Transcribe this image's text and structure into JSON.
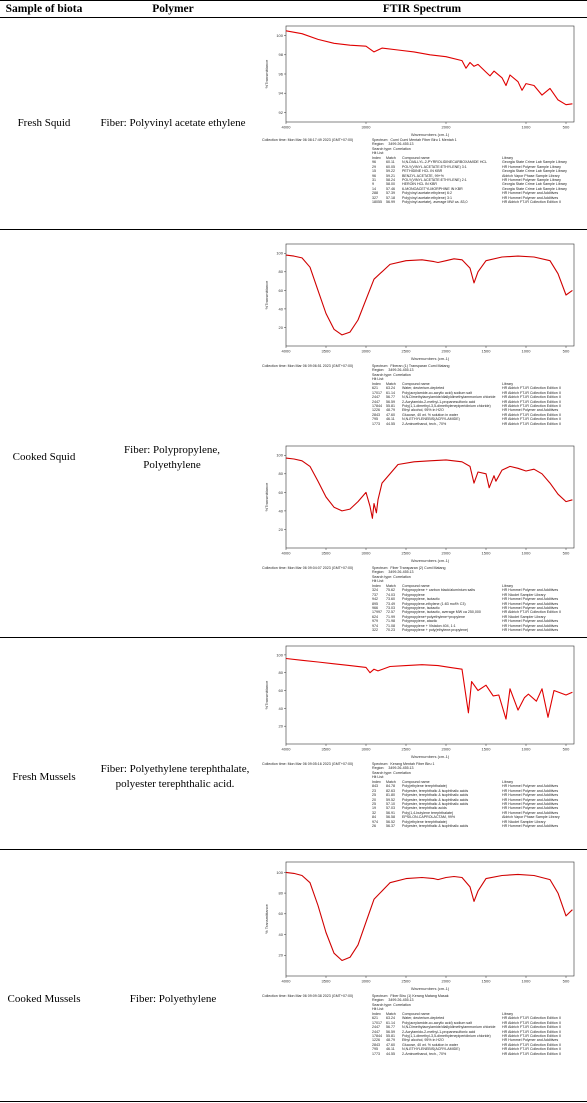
{
  "header": {
    "biota": "Sample of biota",
    "polymer": "Polymer",
    "spectrum": "FTIR Spectrum"
  },
  "rows": [
    {
      "biota": "Fresh Squid",
      "polymer": "Fiber: Polyvinyl acetate ethylene",
      "spectra": [
        {
          "collection": "Collection time: Mon Mar 06 08:17:49 2023 (GMT+07:00)",
          "search_header": "Spectrum:  Cumi Cumi Mentah Fiber Biru 1 Mentah 1\nRegion:    3499.26-455.13\nSearch type: Correlation\nHit List:",
          "hits": [
            [
              "Index",
              "Match",
              "Compound name",
              "Library"
            ],
            [
              "96",
              "60.11",
              "N,N-DIALLYL-2-PYRROLIDINECARBOXAMIDE HCL",
              "Georgia State Crime Lab Sample Library"
            ],
            [
              "29",
              "60.05",
              "POLY(VINYL ACETATE:ETHYLENE) 3:1",
              "HR Hummel Polymer Sample Library"
            ],
            [
              "15",
              "59.22",
              "PETHIDINE HCL IN KBR",
              "Georgia State Crime Lab Sample Library"
            ],
            [
              "96",
              "59.21",
              "BENZYL ACETATE, 99+%",
              "Aldrich Vapor Phase Sample Library"
            ],
            [
              "31",
              "58.24",
              "POLY(VINYL ACETATE:ETHYLENE) 2:1",
              "HR Hummel Polymer Sample Library"
            ],
            [
              "9",
              "58.00",
              "HEROIN HCL IN KBR",
              "Georgia State Crime Lab Sample Library"
            ],
            [
              "14",
              "57.46",
              "6-MONOACETYLMORPHINE IN KBR",
              "Georgia State Crime Lab Sample Library"
            ],
            [
              "288",
              "57.39",
              "Poly(vinyl acetate:ethylene) 6:2",
              "HR Hummel Polymer and Additives"
            ],
            [
              "327",
              "57.18",
              "Poly(vinyl acetate:ethylene) 3:1",
              "HR Hummel Polymer and Additives"
            ],
            [
              "18055",
              "56.99",
              "Poly(vinyl acetate), average MW ca. 83,0",
              "HR Aldrich FT-IR Collection Edition II"
            ]
          ]
        }
      ]
    },
    {
      "biota": "Cooked Squid",
      "polymer": "Fiber: Polypropylene, Polyethylene",
      "spectra": [
        {
          "collection": "Collection time: Mon Mar 06 09:06:51 2023 (GMT+07:00)",
          "search_header": "Spectrum:  Fiberan (1) Transparan Cumi Matang\nRegion:    3499.26-455.13\nSearch type: Correlation\nHit List:",
          "hits": [
            [
              "Index",
              "Match",
              "Compound name",
              "Library"
            ],
            [
              "621",
              "63.24",
              "Water, deuterium-depleted",
              "HR Aldrich FT-IR Collection Edition II"
            ],
            [
              "17017",
              "61.14",
              "Poly(acrylamide-co-acrylic acid) sodium salt",
              "HR Aldrich FT-IR Collection Edition II"
            ],
            [
              "2447",
              "56.77",
              "N,N-Dimethylacrylamide/diallyldimethylammonium chloride",
              "HR Aldrich FT-IR Collection Edition II"
            ],
            [
              "2447",
              "56.59",
              "2-Acrylamido-2-methyl-1-propanesulfonic acid",
              "HR Aldrich FT-IR Collection Edition II"
            ],
            [
              "17844",
              "55.81",
              "Poly(1,1-dimethyl-3,5-dimethylenepiperidinium chloride)",
              "HR Aldrich FT-IR Collection Edition II"
            ],
            [
              "1226",
              "48.79",
              "Ethyl alcohol, 95% in H2O",
              "HR Hummel Polymer and Additives"
            ],
            [
              "2843",
              "47.60",
              "Glucose, 40 wt. % solution in water",
              "HR Aldrich FT-IR Collection Edition II"
            ],
            [
              "795",
              "46.11",
              "N,N-ETHYLENEBIS(ACRYLAMIDE)",
              "HR Aldrich FT-IR Collection Edition II"
            ],
            [
              "1773",
              "44.55",
              "2-Aminoethanol, tech., 70%",
              "HR Aldrich FT-IR Collection Edition II"
            ]
          ]
        },
        {
          "collection": "Collection time: Mon Mar 06 09:04:07 2023 (GMT+07:00)",
          "search_header": "Spectrum:  Fiber Transparan (2) Cumi Matang\nRegion:    3499.26-455.13\nSearch type: Correlation\nHit List:",
          "hits": [
            [
              "Index",
              "Match",
              "Compound name",
              "Library"
            ],
            [
              "324",
              "75.62",
              "Polypropylene + carbon black/aluminium salts",
              "HR Hummel Polymer and Additives"
            ],
            [
              "737",
              "74.03",
              "Polypropylene",
              "HR Nicolet Sampler Library"
            ],
            [
              "942",
              "73.60",
              "Polypropylene, isotactic",
              "HR Hummel Polymer and Additives"
            ],
            [
              "895",
              "73.49",
              "Polypropylene-ethylene (1:83 mol% C3)",
              "HR Hummel Polymer and Additives"
            ],
            [
              "966",
              "73.03",
              "Polypropylene, isotactic",
              "HR Hummel Polymer and Additives"
            ],
            [
              "17997",
              "72.57",
              "Polypropylene, isotactic, average MW ca 250,000",
              "HR Aldrich FT-IR Collection Edition II"
            ],
            [
              "624",
              "71.99",
              "Polypropylene+polyethylene+propylene",
              "HR Nicolet Sampler Library"
            ],
            [
              "979",
              "71.98",
              "Polypropylene, atactic",
              "HR Hummel Polymer and Additives"
            ],
            [
              "974",
              "71.08",
              "Polypropylene + Vistalon 404, 1:1",
              "HR Hummel Polymer and Additives"
            ],
            [
              "322",
              "70.23",
              "Polypropylene + poly(ethylene:propylene)",
              "HR Hummel Polymer and Additives"
            ]
          ]
        }
      ]
    },
    {
      "biota": "Fresh Mussels",
      "polymer": "Fiber: Polyethylene terephthalate, polyester terephthalic acid.",
      "spectra": [
        {
          "collection": "Collection time: Mon Mar 06 09:05:16 2023 (GMT+07:00)",
          "search_header": "Spectrum:  Kerang Mentah Fiber Biru 1\nRegion:    3499.26-455.13\nSearch type: Correlation\nHit List:",
          "hits": [
            [
              "Index",
              "Match",
              "Compound name",
              "Library"
            ],
            [
              "843",
              "84.78",
              "Poly(ethylene terephthalate)",
              "HR Hummel Polymer and Additives"
            ],
            [
              "23",
              "82.63",
              "Polyester, terephthalic & isophthalic acids",
              "HR Hummel Polymer and Additives"
            ],
            [
              "25",
              "81.80",
              "Polyester, terephthalic & isophthalic acids",
              "HR Hummel Polymer and Additives"
            ],
            [
              "20",
              "59.52",
              "Polyester, terephthalic & isophthalic acids",
              "HR Hummel Polymer and Additives"
            ],
            [
              "25",
              "57.10",
              "Polyester, terephthalic & isophthalic acids",
              "HR Hummel Polymer and Additives"
            ],
            [
              "19",
              "57.03",
              "Polyester, terephthalic acids",
              "HR Hummel Polymer and Additives"
            ],
            [
              "32",
              "56.91",
              "Poly(1,4-butylene terephthalate)",
              "HR Hummel Polymer and Additives"
            ],
            [
              "84",
              "56.58",
              "EPSILON-CAPROLACTAM, 99%",
              "Aldrich Vapor Phase Sample Library"
            ],
            [
              "974",
              "56.52",
              "Poly(ethylene terephthalate)",
              "HR Nicolet Sampler Library"
            ],
            [
              "26",
              "56.37",
              "Polyester, terephthalic & isophthalic acids",
              "HR Hummel Polymer and Additives"
            ]
          ]
        }
      ]
    },
    {
      "biota": "Cooked Mussels",
      "polymer": "Fiber: Polyethylene",
      "spectra": [
        {
          "collection": "Collection time: Mon Mar 06 09:09:38 2023 (GMT+07:00)",
          "search_header": "Spectrum:  Fiber Biru (1) Kerang Matang Masak\nRegion:    3499.26-455.13\nSearch type: Correlation\nHit List:",
          "hits": [
            [
              "Index",
              "Match",
              "Compound name",
              "Library"
            ],
            [
              "621",
              "63.24",
              "Water, deuterium-depleted",
              "HR Aldrich FT-IR Collection Edition II"
            ],
            [
              "17017",
              "61.14",
              "Poly(acrylamide-co-acrylic acid) sodium salt",
              "HR Aldrich FT-IR Collection Edition II"
            ],
            [
              "2447",
              "56.77",
              "N,N-Dimethylacrylamide/diallyldimethylammonium chloride",
              "HR Aldrich FT-IR Collection Edition II"
            ],
            [
              "2447",
              "56.59",
              "2-Acrylamido-2-methyl-1-propanesulfonic acid",
              "HR Aldrich FT-IR Collection Edition II"
            ],
            [
              "17844",
              "55.81",
              "Poly(1,1-dimethyl-3,5-dimethylenepiperidinium chloride)",
              "HR Aldrich FT-IR Collection Edition II"
            ],
            [
              "1226",
              "48.79",
              "Ethyl alcohol, 95% in H2O",
              "HR Hummel Polymer and Additives"
            ],
            [
              "2843",
              "47.60",
              "Glucose, 40 wt. % solution in water",
              "HR Aldrich FT-IR Collection Edition II"
            ],
            [
              "795",
              "46.11",
              "N,N-ETHYLENEBIS(ACRYLAMIDE)",
              "HR Aldrich FT-IR Collection Edition II"
            ],
            [
              "1773",
              "44.55",
              "2-Aminoethanol, tech., 70%",
              "HR Aldrich FT-IR Collection Edition II"
            ]
          ]
        }
      ]
    }
  ],
  "chart_data": [
    {
      "type": "line",
      "xlabel": "Wavenumbers (cm-1)",
      "ylabel": "%Transmittance",
      "xlim": [
        4000,
        400
      ],
      "ylim": [
        91,
        101
      ],
      "x_ticks": [
        4000,
        3000,
        2000,
        1000,
        500
      ],
      "y_ticks": [
        92,
        94,
        96,
        98,
        100
      ],
      "color": "#e00000",
      "x": [
        4000,
        3800,
        3600,
        3400,
        3200,
        3000,
        2900,
        2800,
        2600,
        2400,
        2200,
        2000,
        1800,
        1750,
        1700,
        1650,
        1600,
        1500,
        1450,
        1400,
        1300,
        1250,
        1200,
        1100,
        1050,
        1000,
        900,
        800,
        700,
        600,
        500,
        420
      ],
      "y": [
        100.5,
        100.2,
        99.6,
        99.2,
        99.0,
        98.9,
        98.3,
        98.7,
        98.5,
        98.3,
        98.0,
        97.8,
        97.4,
        96.6,
        97.2,
        96.8,
        97.0,
        96.2,
        95.8,
        96.3,
        95.6,
        94.8,
        95.9,
        95.2,
        94.3,
        95.0,
        94.8,
        93.8,
        94.5,
        93.3,
        92.8,
        92.9
      ]
    },
    {
      "type": "line",
      "xlabel": "Wavenumbers (cm-1)",
      "ylabel": "%Transmittance",
      "xlim": [
        4000,
        400
      ],
      "ylim": [
        0,
        110
      ],
      "x_ticks": [
        4000,
        3500,
        3000,
        2500,
        2000,
        1500,
        1000,
        500
      ],
      "y_ticks": [
        20,
        40,
        60,
        80,
        100
      ],
      "color": "#d00000",
      "x": [
        4000,
        3900,
        3800,
        3700,
        3600,
        3500,
        3400,
        3300,
        3200,
        3100,
        3000,
        2900,
        2700,
        2500,
        2300,
        2150,
        2100,
        2000,
        1900,
        1800,
        1700,
        1650,
        1600,
        1500,
        1300,
        1100,
        900,
        700,
        600,
        500,
        420
      ],
      "y": [
        98,
        97,
        95,
        85,
        60,
        35,
        18,
        12,
        15,
        28,
        50,
        72,
        88,
        92,
        93,
        91,
        90,
        92,
        94,
        93,
        84,
        68,
        80,
        92,
        96,
        97,
        96,
        92,
        78,
        55,
        60
      ]
    },
    {
      "type": "line",
      "xlabel": "Wavenumbers (cm-1)",
      "ylabel": "%Transmittance",
      "xlim": [
        4000,
        400
      ],
      "ylim": [
        0,
        110
      ],
      "x_ticks": [
        4000,
        3500,
        3000,
        2500,
        2000,
        1500,
        1000,
        500
      ],
      "y_ticks": [
        20,
        40,
        60,
        80,
        100
      ],
      "color": "#d00000",
      "x": [
        4000,
        3900,
        3800,
        3700,
        3600,
        3500,
        3400,
        3300,
        3200,
        3100,
        3000,
        2950,
        2920,
        2900,
        2870,
        2850,
        2800,
        2600,
        2400,
        2200,
        2000,
        1800,
        1700,
        1650,
        1600,
        1500,
        1460,
        1400,
        1376,
        1300,
        1200,
        1100,
        1000,
        900,
        800,
        700,
        600,
        500,
        420
      ],
      "y": [
        97,
        96,
        94,
        88,
        72,
        55,
        44,
        40,
        42,
        50,
        60,
        45,
        32,
        48,
        38,
        52,
        70,
        90,
        93,
        94,
        95,
        93,
        88,
        70,
        82,
        80,
        65,
        78,
        72,
        84,
        88,
        86,
        83,
        85,
        80,
        70,
        58,
        50,
        52
      ]
    },
    {
      "type": "line",
      "xlabel": "Wavenumbers (cm-1)",
      "ylabel": "%Transmittance",
      "xlim": [
        4000,
        400
      ],
      "ylim": [
        0,
        110
      ],
      "x_ticks": [
        4000,
        3500,
        3000,
        2500,
        2000,
        1500,
        1000,
        500
      ],
      "y_ticks": [
        20,
        40,
        60,
        80,
        100
      ],
      "color": "#e00000",
      "x": [
        4000,
        3800,
        3600,
        3400,
        3200,
        3000,
        2950,
        2900,
        2850,
        2700,
        2500,
        2300,
        2100,
        1950,
        1800,
        1720,
        1680,
        1600,
        1500,
        1410,
        1340,
        1250,
        1200,
        1100,
        1020,
        970,
        870,
        800,
        725,
        650,
        500,
        420
      ],
      "y": [
        96,
        94,
        92,
        90,
        88,
        86,
        80,
        84,
        82,
        87,
        88,
        89,
        88,
        86,
        84,
        35,
        70,
        60,
        66,
        54,
        55,
        28,
        62,
        38,
        52,
        56,
        48,
        62,
        30,
        60,
        55,
        58
      ]
    },
    {
      "type": "line",
      "xlabel": "Wavenumbers (cm-1)",
      "ylabel": "% Transmittance",
      "xlim": [
        4000,
        400
      ],
      "ylim": [
        0,
        110
      ],
      "x_ticks": [
        4000,
        3500,
        3000,
        2500,
        2000,
        1500,
        1000,
        500
      ],
      "y_ticks": [
        20,
        40,
        60,
        80,
        100
      ],
      "color": "#d00000",
      "x": [
        4000,
        3900,
        3800,
        3700,
        3600,
        3500,
        3400,
        3300,
        3200,
        3100,
        3000,
        2900,
        2700,
        2500,
        2300,
        2150,
        2100,
        2000,
        1900,
        1800,
        1700,
        1650,
        1600,
        1500,
        1300,
        1100,
        900,
        700,
        600,
        500,
        420
      ],
      "y": [
        100,
        99,
        97,
        90,
        68,
        42,
        22,
        15,
        18,
        30,
        52,
        74,
        90,
        94,
        95,
        94,
        93,
        95,
        96,
        95,
        86,
        72,
        82,
        94,
        97,
        98,
        97,
        93,
        80,
        58,
        64
      ]
    }
  ]
}
